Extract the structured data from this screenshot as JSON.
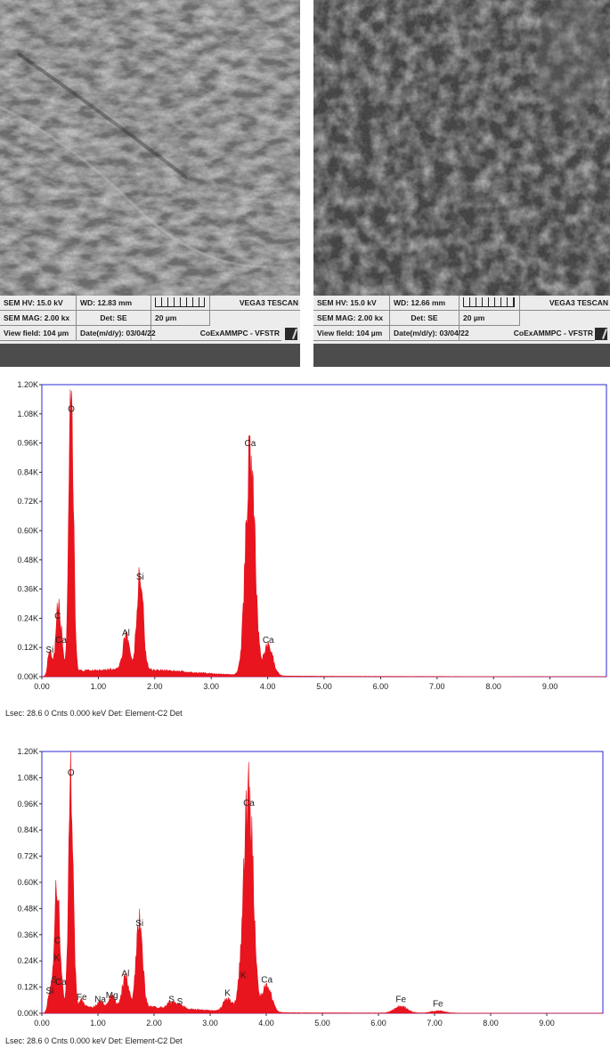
{
  "sem_images": [
    {
      "hv": "SEM HV: 15.0 kV",
      "wd": "WD: 12.83 mm",
      "brand": "VEGA3 TESCAN",
      "mag": "SEM MAG: 2.00 kx",
      "det": "Det: SE",
      "scale": "20 µm",
      "view_field": "View field: 104 µm",
      "date": "Date(m/d/y): 03/04/22",
      "lab": "CoExAMMPC - VFSTR"
    },
    {
      "hv": "SEM HV: 15.0 kV",
      "wd": "WD: 12.66 mm",
      "brand": "VEGA3 TESCAN",
      "mag": "SEM MAG: 2.00 kx",
      "det": "Det: SE",
      "scale": "20 µm",
      "view_field": "View field: 104 µm",
      "date": "Date(m/d/y): 03/04/22",
      "lab": "CoExAMMPC - VFSTR"
    }
  ],
  "chart_data": [
    {
      "type": "line",
      "title": "",
      "xlabel": "",
      "ylabel": "",
      "xlim": [
        0,
        10
      ],
      "ylim": [
        0,
        1.2
      ],
      "x_ticks": [
        "0.00",
        "1.00",
        "2.00",
        "3.00",
        "4.00",
        "5.00",
        "6.00",
        "7.00",
        "8.00",
        "9.00"
      ],
      "y_ticks": [
        "0.00K",
        "0.12K",
        "0.24K",
        "0.36K",
        "0.48K",
        "0.60K",
        "0.72K",
        "0.84K",
        "0.96K",
        "1.08K",
        "1.20K"
      ],
      "peaks": [
        {
          "label": "Si",
          "x": 0.14,
          "y": 0.08
        },
        {
          "label": "C",
          "x": 0.28,
          "y": 0.22
        },
        {
          "label": "Ca",
          "x": 0.34,
          "y": 0.12
        },
        {
          "label": "O",
          "x": 0.52,
          "y": 1.07
        },
        {
          "label": "Al",
          "x": 1.49,
          "y": 0.15
        },
        {
          "label": "Si",
          "x": 1.74,
          "y": 0.38
        },
        {
          "label": "Ca",
          "x": 3.69,
          "y": 0.93
        },
        {
          "label": "Ca",
          "x": 4.01,
          "y": 0.12
        }
      ],
      "footer": "Lsec: 28.6 0 Cnts  0.000 keV Det: Element-C2 Det",
      "color": "#e8141e"
    },
    {
      "type": "line",
      "title": "",
      "xlabel": "",
      "ylabel": "",
      "xlim": [
        0,
        10
      ],
      "ylim": [
        0,
        1.2
      ],
      "x_ticks": [
        "0.00",
        "1.00",
        "2.00",
        "3.00",
        "4.00",
        "5.00",
        "6.00",
        "7.00",
        "8.00",
        "9.00"
      ],
      "y_ticks": [
        "0.00K",
        "0.12K",
        "0.24K",
        "0.36K",
        "0.48K",
        "0.60K",
        "0.72K",
        "0.84K",
        "0.96K",
        "1.08K",
        "1.20K"
      ],
      "peaks": [
        {
          "label": "Si",
          "x": 0.14,
          "y": 0.07
        },
        {
          "label": "S",
          "x": 0.22,
          "y": 0.12
        },
        {
          "label": "K",
          "x": 0.27,
          "y": 0.22
        },
        {
          "label": "C",
          "x": 0.28,
          "y": 0.3
        },
        {
          "label": "Ca",
          "x": 0.34,
          "y": 0.11
        },
        {
          "label": "O",
          "x": 0.52,
          "y": 1.07
        },
        {
          "label": "Fe",
          "x": 0.71,
          "y": 0.04
        },
        {
          "label": "Na",
          "x": 1.04,
          "y": 0.03
        },
        {
          "label": "Mg",
          "x": 1.25,
          "y": 0.05
        },
        {
          "label": "Al",
          "x": 1.49,
          "y": 0.15
        },
        {
          "label": "Si",
          "x": 1.74,
          "y": 0.38
        },
        {
          "label": "S",
          "x": 2.31,
          "y": 0.03
        },
        {
          "label": "S",
          "x": 2.46,
          "y": 0.02
        },
        {
          "label": "K",
          "x": 3.31,
          "y": 0.06
        },
        {
          "label": "K",
          "x": 3.59,
          "y": 0.14
        },
        {
          "label": "Ca",
          "x": 3.69,
          "y": 0.93
        },
        {
          "label": "Ca",
          "x": 4.01,
          "y": 0.12
        },
        {
          "label": "Fe",
          "x": 6.4,
          "y": 0.03
        },
        {
          "label": "Fe",
          "x": 7.06,
          "y": 0.01
        }
      ],
      "footer": "Lsec: 28.6 0 Cnts  0.000 keV Det: Element-C2 Det",
      "color": "#e8141e"
    }
  ]
}
